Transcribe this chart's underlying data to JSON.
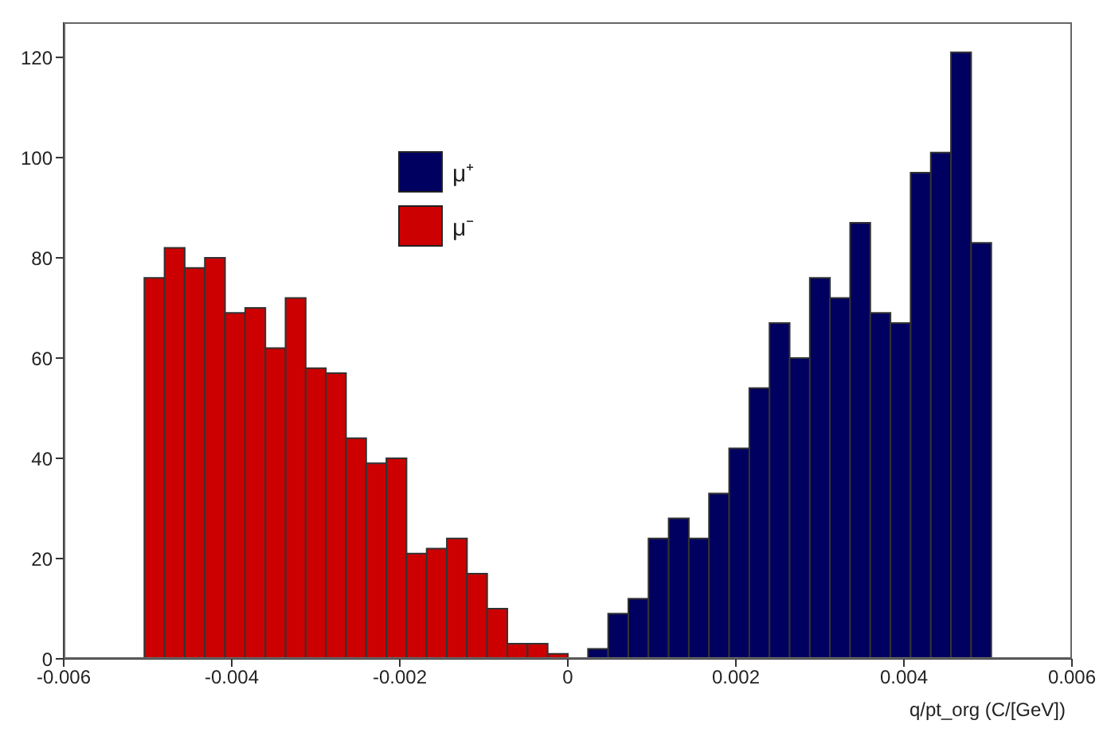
{
  "chart_data": {
    "type": "histogram",
    "xlabel": "q/pt_org (C/[GeV])",
    "bins": [
      -0.00504,
      -0.0048,
      -0.00456,
      -0.00432,
      -0.00408,
      -0.00384,
      -0.0036,
      -0.00336,
      -0.00312,
      -0.00288,
      -0.00264,
      -0.0024,
      -0.00216,
      -0.00192,
      -0.00168,
      -0.00144,
      -0.0012,
      -0.00096,
      -0.00072,
      -0.00048,
      -0.00024,
      0,
      0.00024,
      0.00048,
      0.00072,
      0.00096,
      0.0012,
      0.00144,
      0.00168,
      0.00192,
      0.00216,
      0.0024,
      0.00264,
      0.00288,
      0.00312,
      0.00336,
      0.0036,
      0.00384,
      0.00408,
      0.00432,
      0.00456,
      0.0048,
      0.00504
    ],
    "series": [
      {
        "name": "μ⁺",
        "color": "#000060",
        "values": [
          null,
          null,
          null,
          null,
          null,
          null,
          null,
          null,
          null,
          null,
          null,
          null,
          null,
          null,
          null,
          null,
          null,
          null,
          null,
          null,
          null,
          0,
          2,
          9,
          12,
          24,
          28,
          24,
          33,
          42,
          54,
          67,
          60,
          76,
          72,
          87,
          69,
          67,
          97,
          101,
          121,
          83
        ]
      },
      {
        "name": "μ⁻",
        "color": "#cc0000",
        "values": [
          76,
          82,
          78,
          80,
          69,
          70,
          62,
          72,
          58,
          57,
          44,
          39,
          40,
          21,
          22,
          24,
          17,
          10,
          3,
          3,
          1,
          0,
          null,
          null,
          null,
          null,
          null,
          null,
          null,
          null,
          null,
          null,
          null,
          null,
          null,
          null,
          null,
          null,
          null,
          null,
          null,
          null
        ]
      }
    ],
    "xlim": [
      -0.006,
      0.006
    ],
    "xticks": [
      -0.006,
      -0.004,
      -0.002,
      0,
      0.002,
      0.004,
      0.006
    ],
    "ylim": [
      0,
      127
    ],
    "yticks": [
      0,
      20,
      40,
      60,
      80,
      100,
      120
    ],
    "legend": "top"
  }
}
